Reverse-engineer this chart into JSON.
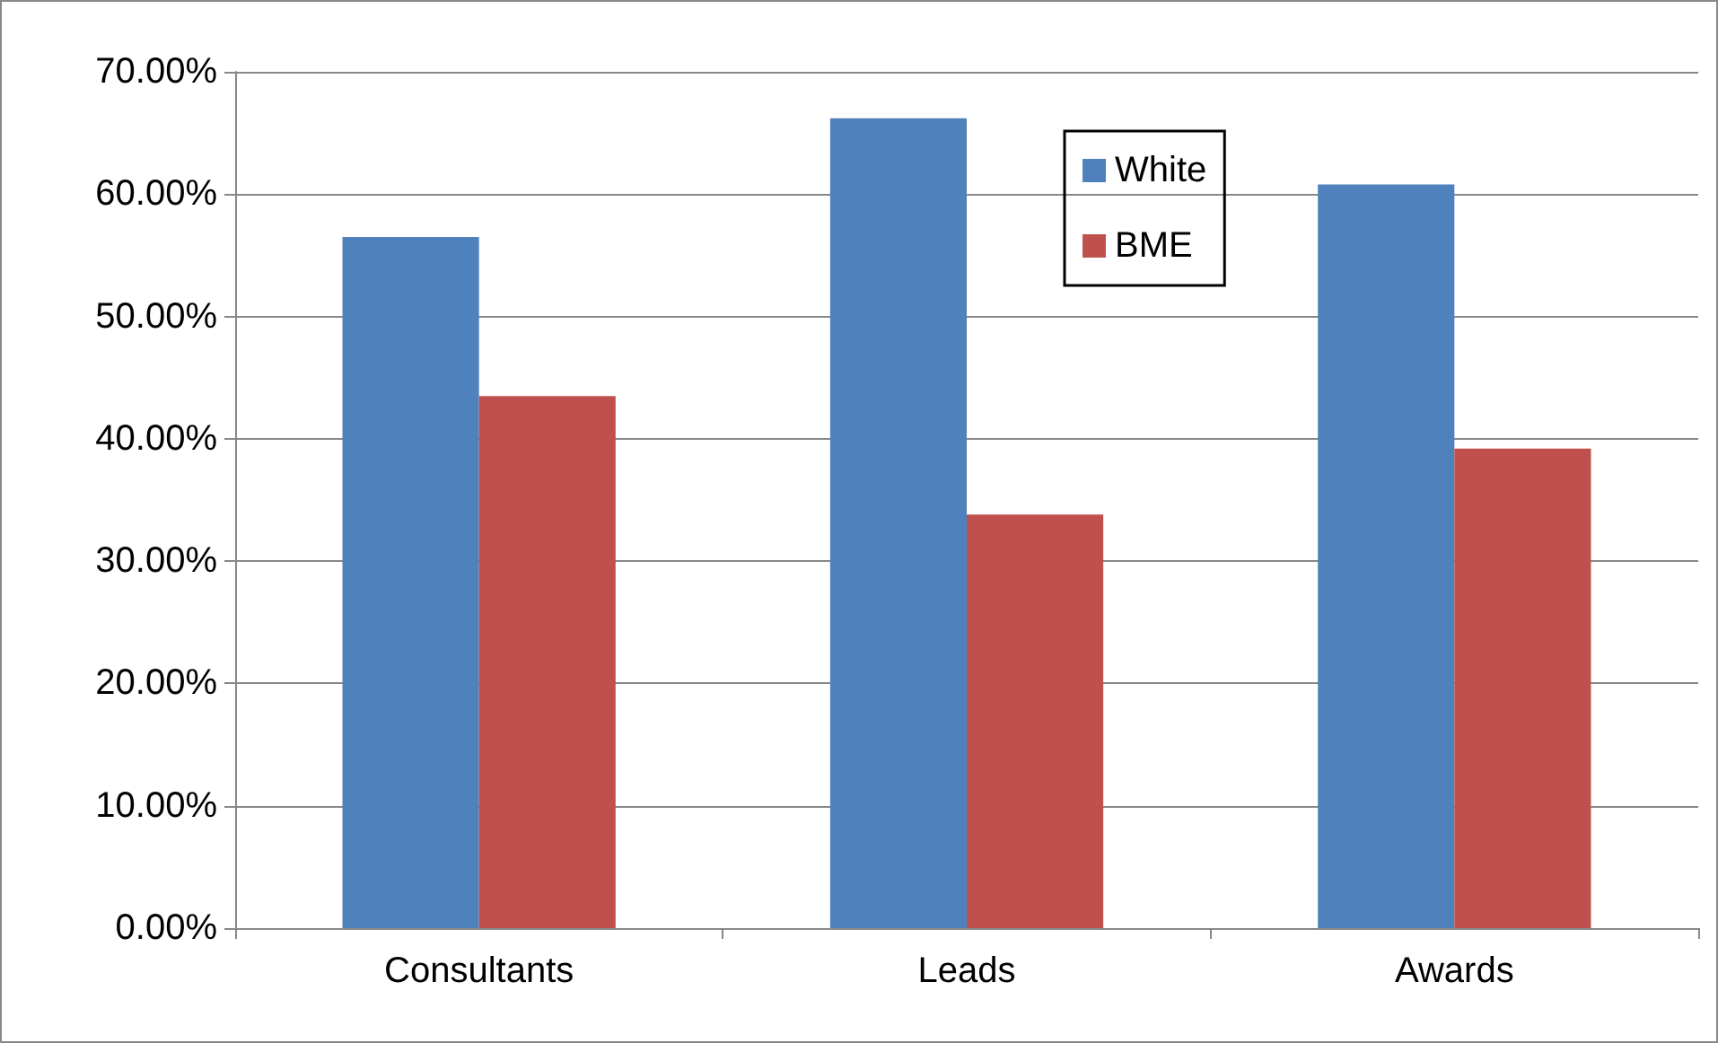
{
  "chart_data": {
    "type": "bar",
    "categories": [
      "Consultants",
      "Leads",
      "Awards"
    ],
    "series": [
      {
        "name": "White",
        "color": "#4f81bd",
        "values": [
          56.5,
          66.2,
          60.8
        ]
      },
      {
        "name": "BME",
        "color": "#c0504d",
        "values": [
          43.5,
          33.8,
          39.2
        ]
      }
    ],
    "ylim": [
      0,
      70
    ],
    "yticks": [
      {
        "value": 0,
        "label": "0.00%"
      },
      {
        "value": 10,
        "label": "10.00%"
      },
      {
        "value": 20,
        "label": "20.00%"
      },
      {
        "value": 30,
        "label": "30.00%"
      },
      {
        "value": 40,
        "label": "40.00%"
      },
      {
        "value": 50,
        "label": "50.00%"
      },
      {
        "value": 60,
        "label": "60.00%"
      },
      {
        "value": 70,
        "label": "70.00%"
      }
    ],
    "grid": "y",
    "legend": "top right"
  }
}
